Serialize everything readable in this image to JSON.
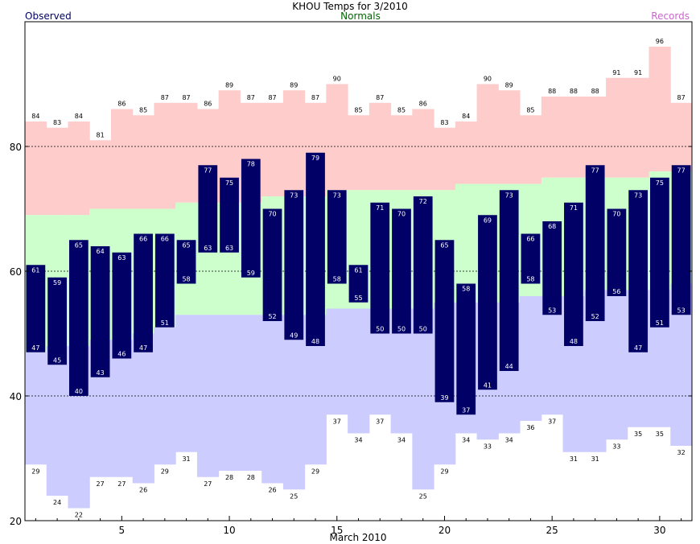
{
  "chart_data": {
    "type": "bar",
    "title": "KHOU Temps for 3/2010",
    "legend": {
      "observed": "Observed",
      "normals": "Normals",
      "records": "Records"
    },
    "xlabel": "March 2010",
    "xlim": [
      0.5,
      31.5
    ],
    "ylim": [
      20,
      100
    ],
    "x_ticks": [
      5,
      10,
      15,
      20,
      25,
      30
    ],
    "y_ticks": [
      20,
      40,
      60,
      80
    ],
    "gridlines_y": [
      40,
      60,
      80
    ],
    "days": [
      1,
      2,
      3,
      4,
      5,
      6,
      7,
      8,
      9,
      10,
      11,
      12,
      13,
      14,
      15,
      16,
      17,
      18,
      19,
      20,
      21,
      22,
      23,
      24,
      25,
      26,
      27,
      28,
      29,
      30,
      31
    ],
    "record_high": [
      84,
      83,
      84,
      81,
      86,
      85,
      87,
      87,
      86,
      89,
      87,
      87,
      89,
      87,
      90,
      85,
      87,
      85,
      86,
      83,
      84,
      90,
      89,
      85,
      88,
      88,
      88,
      91,
      91,
      96,
      87
    ],
    "record_low": [
      29,
      24,
      22,
      27,
      27,
      26,
      29,
      31,
      27,
      28,
      28,
      26,
      25,
      29,
      37,
      34,
      37,
      34,
      25,
      29,
      34,
      33,
      34,
      36,
      37,
      31,
      31,
      33,
      35,
      35,
      32
    ],
    "normal_high": [
      69,
      69,
      69,
      70,
      70,
      70,
      70,
      71,
      71,
      71,
      71,
      72,
      72,
      72,
      73,
      73,
      73,
      73,
      73,
      73,
      74,
      74,
      74,
      74,
      75,
      75,
      75,
      75,
      75,
      76,
      76
    ],
    "normal_low": [
      47,
      48,
      48,
      49,
      49,
      50,
      51,
      53,
      53,
      53,
      53,
      53,
      53,
      53,
      54,
      54,
      54,
      54,
      54,
      55,
      55,
      55,
      55,
      56,
      56,
      56,
      57,
      57,
      57,
      57,
      58
    ],
    "observed_high": [
      61,
      59,
      65,
      64,
      63,
      66,
      66,
      65,
      77,
      75,
      78,
      70,
      73,
      79,
      73,
      61,
      71,
      70,
      72,
      65,
      58,
      69,
      73,
      66,
      68,
      71,
      77,
      70,
      73,
      75,
      77
    ],
    "observed_low": [
      47,
      45,
      40,
      43,
      46,
      47,
      51,
      58,
      63,
      63,
      59,
      52,
      49,
      48,
      58,
      55,
      50,
      50,
      50,
      39,
      37,
      41,
      44,
      58,
      53,
      48,
      52,
      56,
      47,
      51,
      53
    ],
    "colors": {
      "record_band": "#ffcccc",
      "normal_band": "#ccffcc",
      "low_band": "#ccccff",
      "observed_bar": "#000066",
      "observed_label": "#ffffff",
      "observed_legend": "#000066",
      "normals_legend": "#006600",
      "records_legend": "#cc66cc",
      "grid": "#000000"
    }
  }
}
